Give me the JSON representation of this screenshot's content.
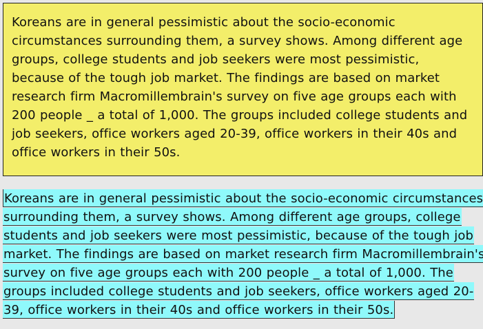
{
  "note_box": {
    "text": "Koreans are in general pessimistic about the socio-economic circumstances surrounding them, a survey shows. Among different age groups, college students and job seekers were most pessimistic, because of the tough job market. The findings are based on market research firm Macromillembrain's survey on five age groups each with 200 people _ a total of 1,000. The groups included college students and job seekers, office workers aged 20-39, office workers in their 40s and office workers in their 50s.",
    "background": "#f3ee6a"
  },
  "highlighted_text": {
    "lines": [
      "Koreans are in general pessimistic about the socio-economic circumstances",
      "surrounding them, a survey shows. Among different age groups, college",
      "students and job seekers were most pessimistic, because of the tough job",
      "market. The findings are based on market research firm Macromillembrain's",
      "survey on five age groups each with 200 people _ a total of 1,000. The",
      "groups included college students and job seekers, office workers aged 20-",
      "39, office workers in their 40s and office workers in their 50s."
    ],
    "highlight_color": "#8ff9fb"
  }
}
